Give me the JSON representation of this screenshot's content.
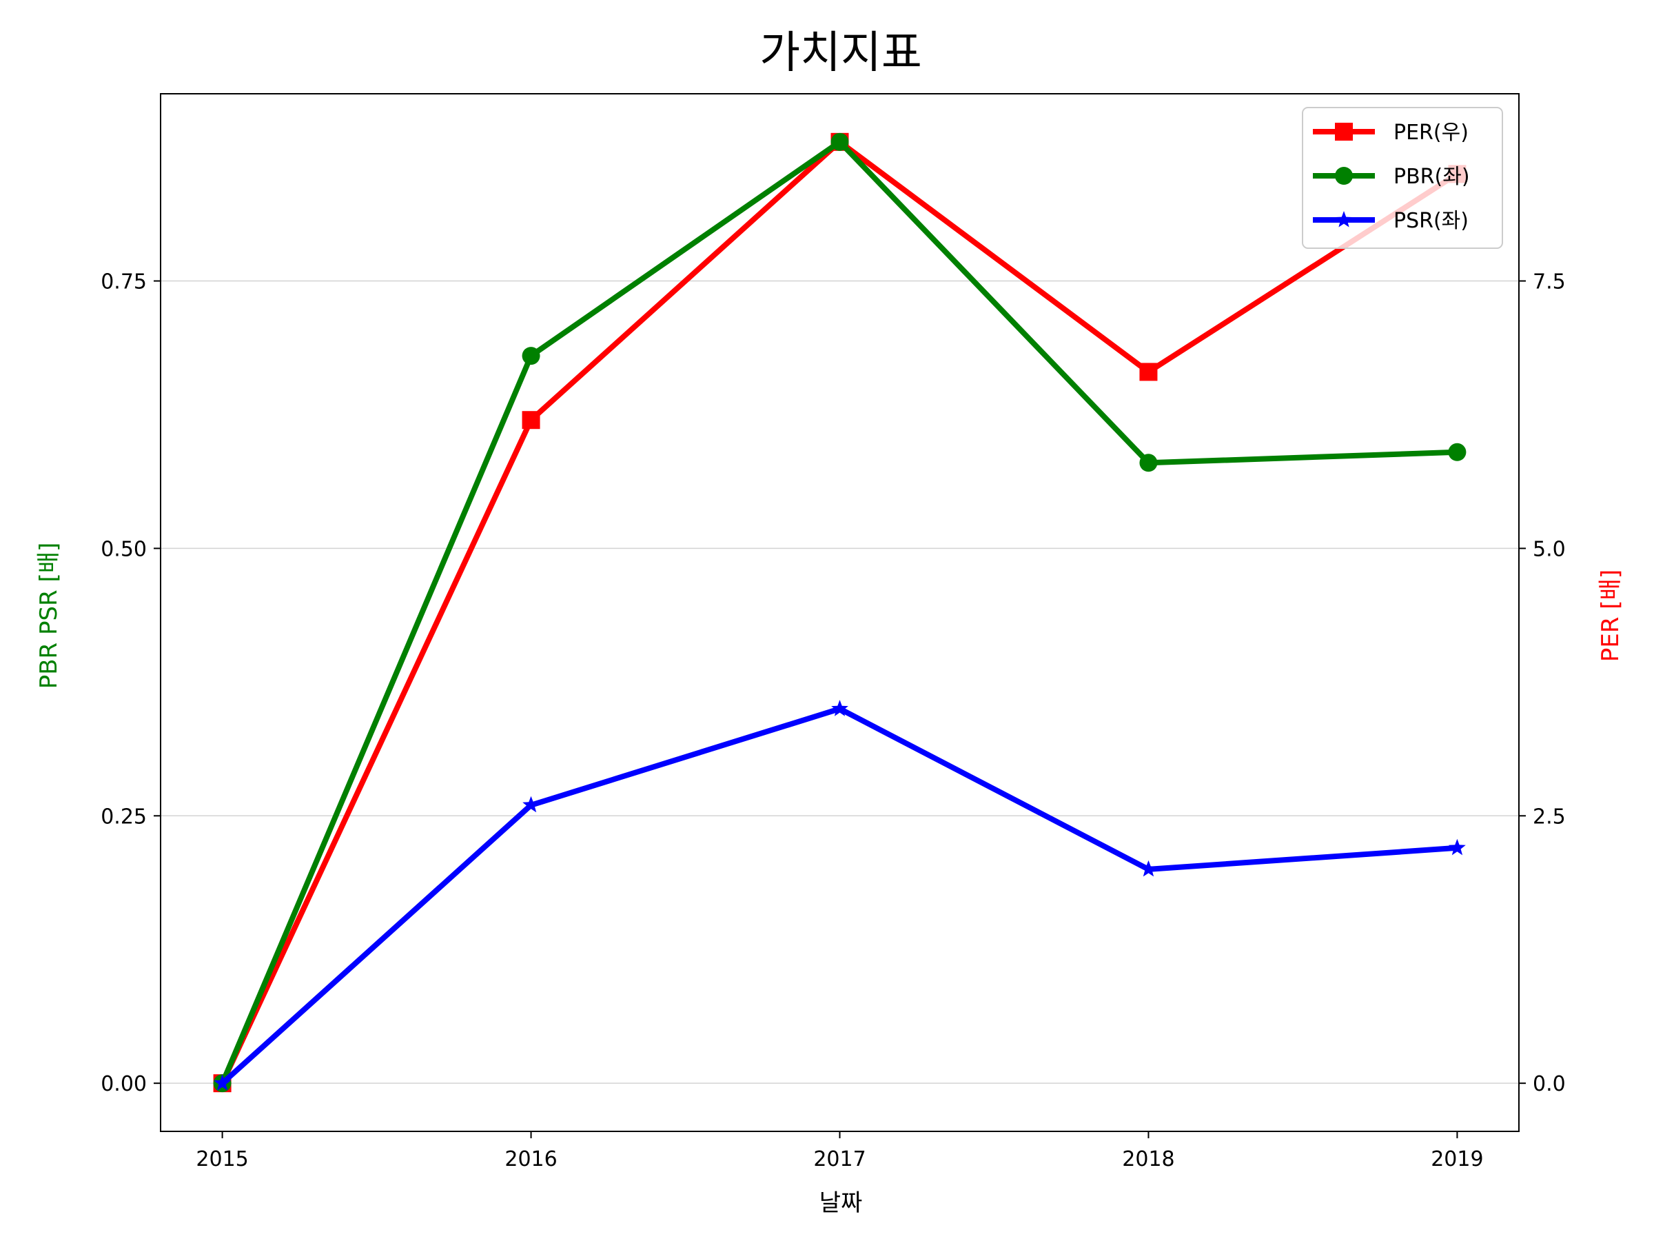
{
  "chart_data": {
    "type": "line",
    "title": "가치지표",
    "xlabel": "날짜",
    "ylabel_left": "PBR PSR [배]",
    "ylabel_right": "PER [배]",
    "categories": [
      "2015",
      "2016",
      "2017",
      "2018",
      "2019"
    ],
    "left_axis": {
      "ylim": [
        -0.045,
        0.925
      ],
      "ticks": [
        0.0,
        0.25,
        0.5,
        0.75
      ],
      "tick_labels": [
        "0.00",
        "0.25",
        "0.50",
        "0.75"
      ],
      "label_color": "#008000"
    },
    "right_axis": {
      "ylim": [
        -0.45,
        9.25
      ],
      "ticks": [
        0.0,
        2.5,
        5.0,
        7.5
      ],
      "tick_labels": [
        "0.0",
        "2.5",
        "5.0",
        "7.5"
      ],
      "label_color": "#ff0000"
    },
    "grid": "horizontal",
    "legend_position": "upper right",
    "series": [
      {
        "name": "PER(우)",
        "axis": "right",
        "color": "#ff0000",
        "marker": "square",
        "values": [
          0.0,
          6.2,
          8.8,
          6.65,
          8.5
        ]
      },
      {
        "name": "PBR(좌)",
        "axis": "left",
        "color": "#008000",
        "marker": "circle",
        "values": [
          0.0,
          0.68,
          0.88,
          0.58,
          0.59
        ]
      },
      {
        "name": "PSR(좌)",
        "axis": "left",
        "color": "#0000ff",
        "marker": "star",
        "values": [
          0.0,
          0.26,
          0.35,
          0.2,
          0.22
        ]
      }
    ]
  }
}
